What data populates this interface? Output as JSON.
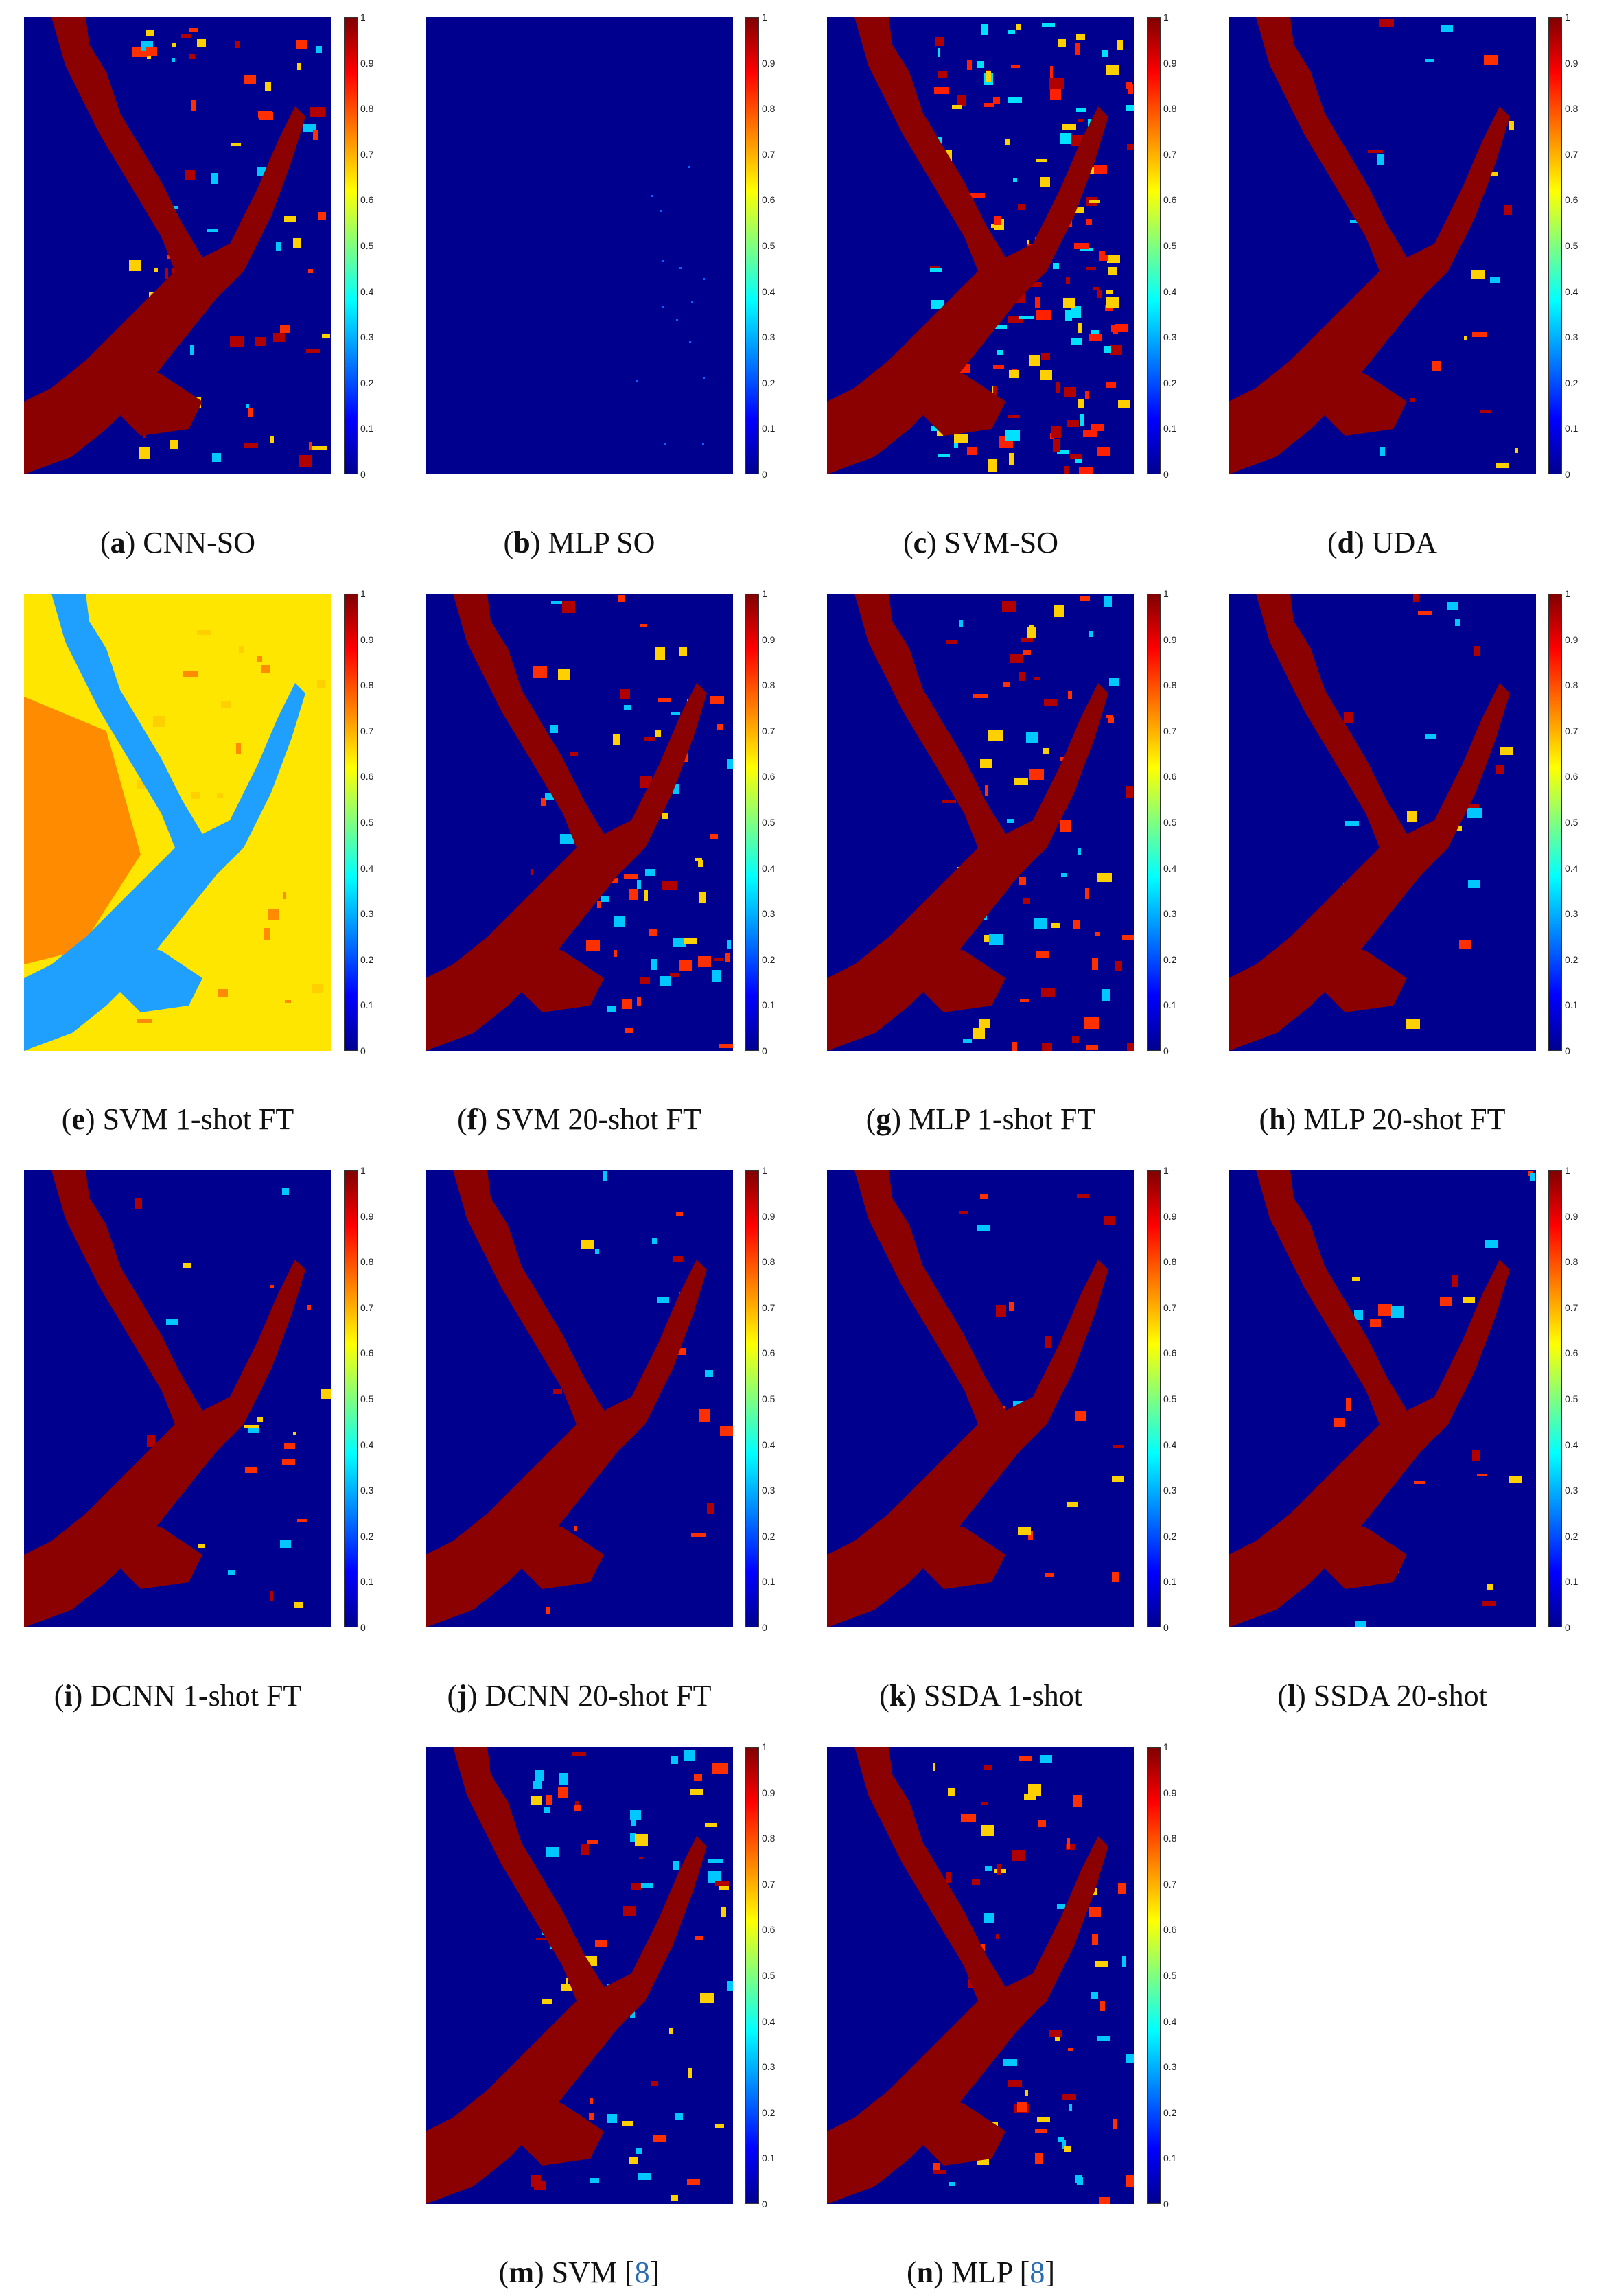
{
  "colorbar_ticks": [
    "1",
    "0.9",
    "0.8",
    "0.7",
    "0.6",
    "0.5",
    "0.4",
    "0.3",
    "0.2",
    "0.1",
    "0"
  ],
  "panels": [
    {
      "letter": "a",
      "label": "CNN-SO",
      "ref": "",
      "style": "normal"
    },
    {
      "letter": "b",
      "label": "MLP SO",
      "ref": "",
      "style": "empty"
    },
    {
      "letter": "c",
      "label": "SVM-SO",
      "ref": "",
      "style": "noisy"
    },
    {
      "letter": "d",
      "label": "UDA",
      "ref": "",
      "style": "clean"
    },
    {
      "letter": "e",
      "label": "SVM 1-shot FT",
      "ref": "",
      "style": "yellow"
    },
    {
      "letter": "f",
      "label": "SVM 20-shot FT",
      "ref": "",
      "style": "normal"
    },
    {
      "letter": "g",
      "label": "MLP 1-shot FT",
      "ref": "",
      "style": "normal"
    },
    {
      "letter": "h",
      "label": "MLP 20-shot FT",
      "ref": "",
      "style": "clean"
    },
    {
      "letter": "i",
      "label": "DCNN 1-shot FT",
      "ref": "",
      "style": "clean"
    },
    {
      "letter": "j",
      "label": "DCNN 20-shot FT",
      "ref": "",
      "style": "clean"
    },
    {
      "letter": "k",
      "label": "SSDA 1-shot",
      "ref": "",
      "style": "clean"
    },
    {
      "letter": "l",
      "label": "SSDA 20-shot",
      "ref": "",
      "style": "clean"
    },
    {
      "letter": "m",
      "label": "SVM",
      "ref": "8",
      "style": "normal"
    },
    {
      "letter": "n",
      "label": "MLP",
      "ref": "8",
      "style": "normal"
    }
  ],
  "colors": {
    "background": "#00008f",
    "river": "#8b0000",
    "yellow": "#ffe600",
    "orange": "#ff8c00",
    "cyan": "#1fa0ff"
  }
}
